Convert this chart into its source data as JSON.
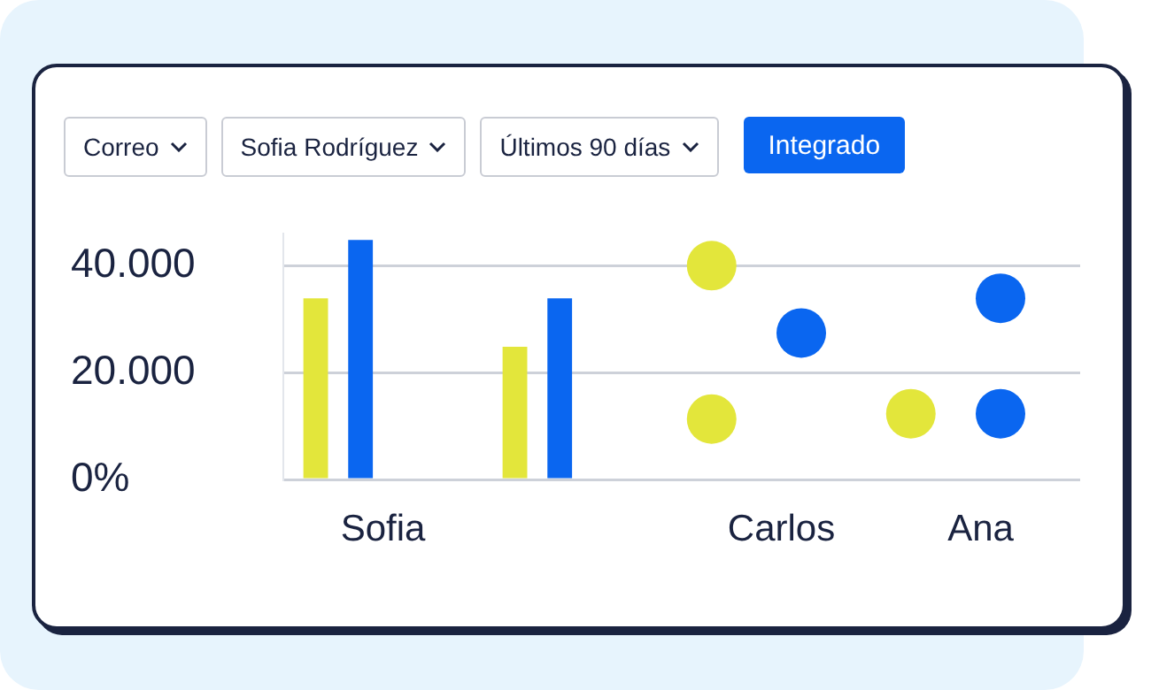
{
  "chart_data": {
    "type": "bar",
    "categories": [
      "Sofia",
      null,
      "Carlos",
      "Ana"
    ],
    "series": [
      {
        "color": "#e3e63b",
        "values": [
          33900,
          24800,
          null,
          null
        ]
      },
      {
        "color": "#0a66f0",
        "values": [
          44800,
          33900,
          null,
          null
        ]
      },
      {
        "type": "scatter",
        "color": "#e3e63b",
        "x": [
          "Carlos",
          "Carlos",
          "Ana"
        ],
        "values": [
          40000,
          11300,
          12300
        ]
      },
      {
        "type": "scatter",
        "color": "#0a66f0",
        "x": [
          "Carlos",
          "Ana",
          "Ana"
        ],
        "values": [
          27400,
          33900,
          12300
        ]
      }
    ],
    "ylim": [
      0,
      46000
    ],
    "yticks": [
      {
        "value": 0,
        "label": "0%"
      },
      {
        "value": 20000,
        "label": "20.000"
      },
      {
        "value": 40000,
        "label": "40.000"
      }
    ],
    "grid": "y",
    "legend": false,
    "marker": "circle",
    "annotations": [
      "Correo",
      "Sofia Rodríguez",
      "Últimos 90 días",
      "Integrado"
    ]
  }
}
